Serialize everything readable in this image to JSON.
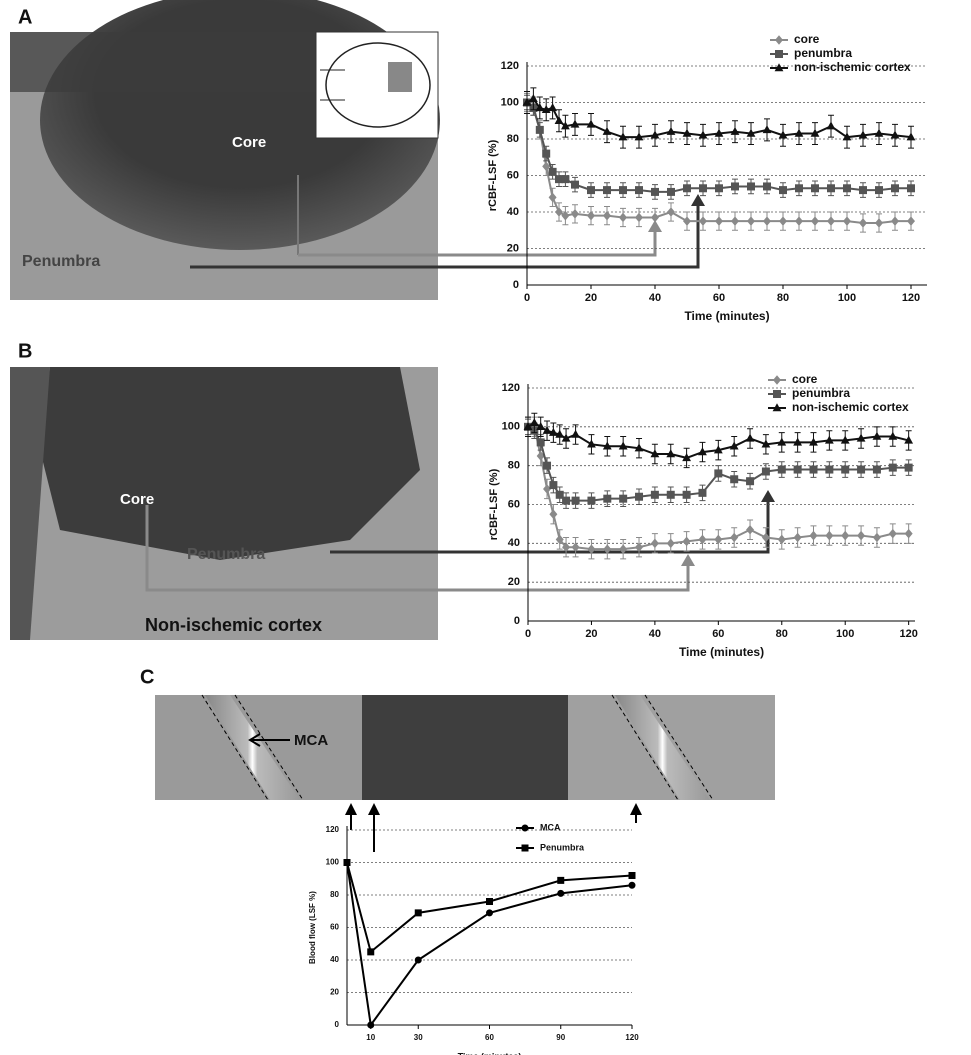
{
  "panel_labels": [
    "A",
    "B",
    "C"
  ],
  "image_labels": {
    "A": [
      "Core",
      "Penumbra"
    ],
    "B": [
      "Core",
      "Penumbra",
      "Non-ischemic cortex"
    ],
    "C": [
      "MCA"
    ]
  },
  "chart_data": [
    {
      "type": "line",
      "y_label": "rCBF-LSF (%)",
      "x_label": "Time (minutes)",
      "x": [
        0,
        2,
        4,
        6,
        8,
        10,
        12,
        15,
        20,
        25,
        30,
        35,
        40,
        45,
        50,
        55,
        60,
        65,
        70,
        75,
        80,
        85,
        90,
        95,
        100,
        105,
        110,
        115,
        120
      ],
      "xlim": [
        0,
        125
      ],
      "xticks": [
        0,
        20,
        40,
        60,
        80,
        100,
        120
      ],
      "ylim": [
        0,
        120
      ],
      "yticks": [
        0,
        20,
        40,
        60,
        80,
        100,
        120
      ],
      "grid": true,
      "legend": "upper right",
      "series": [
        {
          "name": "core",
          "color": "#8a8a8a",
          "marker": "diamond",
          "error": 5,
          "values": [
            100,
            98,
            85,
            65,
            48,
            40,
            38,
            39,
            38,
            38,
            37,
            37,
            37,
            40,
            35,
            35,
            35,
            35,
            35,
            35,
            35,
            35,
            35,
            35,
            35,
            34,
            34,
            35,
            35
          ]
        },
        {
          "name": "penumbra",
          "color": "#555555",
          "marker": "square",
          "error": 4,
          "values": [
            100,
            97,
            85,
            72,
            62,
            58,
            58,
            55,
            52,
            52,
            52,
            52,
            51,
            51,
            53,
            53,
            53,
            54,
            54,
            54,
            52,
            53,
            53,
            53,
            53,
            52,
            52,
            53,
            53
          ]
        },
        {
          "name": "non-ischemic cortex",
          "color": "#111111",
          "marker": "triangle",
          "error": 6,
          "values": [
            100,
            102,
            97,
            96,
            97,
            90,
            87,
            88,
            88,
            84,
            81,
            81,
            82,
            84,
            83,
            82,
            83,
            84,
            83,
            85,
            82,
            83,
            83,
            87,
            81,
            82,
            83,
            82,
            81
          ]
        }
      ]
    },
    {
      "type": "line",
      "y_label": "rCBF-LSF (%)",
      "x_label": "Time (minutes)",
      "x": [
        0,
        2,
        4,
        6,
        8,
        10,
        12,
        15,
        20,
        25,
        30,
        35,
        40,
        45,
        50,
        55,
        60,
        65,
        70,
        75,
        80,
        85,
        90,
        95,
        100,
        105,
        110,
        115,
        120
      ],
      "xlim": [
        0,
        122
      ],
      "xticks": [
        0,
        20,
        40,
        60,
        80,
        100,
        120
      ],
      "ylim": [
        0,
        120
      ],
      "yticks": [
        0,
        20,
        40,
        60,
        80,
        100,
        120
      ],
      "grid": true,
      "legend": "upper right",
      "series": [
        {
          "name": "core",
          "color": "#8a8a8a",
          "marker": "diamond",
          "error": 5,
          "values": [
            100,
            100,
            85,
            68,
            55,
            42,
            38,
            38,
            37,
            37,
            37,
            38,
            40,
            40,
            41,
            42,
            42,
            43,
            47,
            43,
            42,
            43,
            44,
            44,
            44,
            44,
            43,
            45,
            45
          ]
        },
        {
          "name": "penumbra",
          "color": "#555555",
          "marker": "square",
          "error": 4,
          "values": [
            100,
            98,
            92,
            80,
            70,
            65,
            62,
            62,
            62,
            63,
            63,
            64,
            65,
            65,
            65,
            66,
            76,
            73,
            72,
            77,
            78,
            78,
            78,
            78,
            78,
            78,
            78,
            79,
            79
          ]
        },
        {
          "name": "non-ischemic cortex",
          "color": "#111111",
          "marker": "triangle",
          "error": 5,
          "values": [
            100,
            102,
            100,
            98,
            97,
            96,
            94,
            96,
            91,
            90,
            90,
            89,
            86,
            86,
            84,
            87,
            88,
            90,
            94,
            91,
            92,
            92,
            92,
            93,
            93,
            94,
            95,
            95,
            93
          ]
        }
      ]
    },
    {
      "type": "line",
      "y_label": "Blood flow (LSF %)",
      "x_label": "Time (minutes)",
      "x": [
        0,
        10,
        30,
        60,
        90,
        120
      ],
      "xlim": [
        0,
        120
      ],
      "xticks": [
        10,
        30,
        60,
        90,
        120
      ],
      "ylim": [
        0,
        120
      ],
      "yticks": [
        0,
        20,
        40,
        60,
        80,
        100,
        120
      ],
      "grid": true,
      "legend": "upper right",
      "series": [
        {
          "name": "MCA",
          "color": "#000000",
          "marker": "circle",
          "values": [
            100,
            0,
            40,
            69,
            81,
            86
          ]
        },
        {
          "name": "Penumbra",
          "color": "#000000",
          "marker": "square",
          "values": [
            100,
            45,
            69,
            76,
            89,
            92
          ]
        }
      ]
    }
  ]
}
